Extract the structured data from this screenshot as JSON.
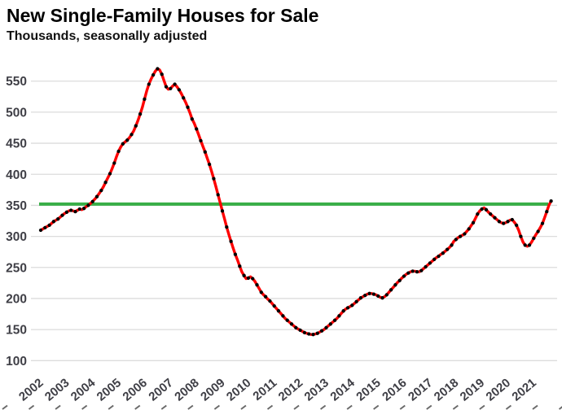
{
  "chart_data": {
    "type": "line",
    "title": "New Single-Family Houses for Sale",
    "subtitle": "Thousands, seasonally adjusted",
    "unit": "thousands of houses",
    "frequency": "monthly",
    "x_start": "2002-01",
    "x_tick_years": [
      2002,
      2003,
      2004,
      2005,
      2006,
      2007,
      2008,
      2009,
      2010,
      2011,
      2012,
      2013,
      2014,
      2015,
      2016,
      2017,
      2018,
      2019,
      2020,
      2021
    ],
    "y_ticks": [
      100,
      150,
      200,
      250,
      300,
      350,
      400,
      450,
      500,
      550
    ],
    "ylim": [
      100,
      580
    ],
    "grid": true,
    "legend_position": "none",
    "reference_line": {
      "value": 352,
      "color": "#38AE47"
    },
    "colors": {
      "line": "#FE0000",
      "marker": "#000000",
      "gridline": "#DCDCDC",
      "axis_label": "#3F3F46",
      "title": "#000000",
      "bottom_tick": "#6A6A6A"
    },
    "series": [
      {
        "name": "New single-family houses for sale, seasonally adjusted",
        "line_color": "#FE0000",
        "marker_color": "#000000",
        "values": [
          310,
          312,
          314,
          316,
          318,
          321,
          324,
          326,
          328,
          331,
          334,
          337,
          339,
          341,
          342,
          341,
          340,
          342,
          344,
          343,
          345,
          348,
          350,
          353,
          356,
          360,
          364,
          369,
          374,
          380,
          387,
          394,
          401,
          409,
          418,
          428,
          437,
          444,
          449,
          452,
          455,
          459,
          464,
          470,
          478,
          487,
          497,
          508,
          521,
          534,
          545,
          553,
          560,
          566,
          570,
          568,
          561,
          551,
          541,
          537,
          538,
          542,
          545,
          541,
          536,
          530,
          523,
          516,
          508,
          499,
          489,
          482,
          473,
          464,
          454,
          445,
          436,
          426,
          416,
          405,
          393,
          380,
          367,
          354,
          341,
          328,
          315,
          303,
          292,
          281,
          271,
          262,
          252,
          243,
          237,
          232,
          233,
          235,
          232,
          228,
          222,
          216,
          210,
          206,
          203,
          199,
          196,
          192,
          188,
          184,
          180,
          176,
          172,
          168,
          165,
          162,
          159,
          156,
          153,
          151,
          149,
          147,
          145,
          144,
          143,
          142,
          142,
          143,
          144,
          146,
          148,
          150,
          153,
          156,
          159,
          162,
          165,
          168,
          172,
          176,
          180,
          183,
          185,
          187,
          189,
          192,
          195,
          198,
          201,
          203,
          205,
          207,
          208,
          208,
          207,
          206,
          204,
          202,
          201,
          203,
          206,
          210,
          214,
          218,
          222,
          226,
          229,
          233,
          236,
          239,
          241,
          243,
          244,
          244,
          243,
          243,
          245,
          248,
          251,
          254,
          257,
          260,
          263,
          266,
          268,
          271,
          273,
          276,
          279,
          282,
          286,
          292,
          295,
          298,
          300,
          302,
          304,
          308,
          312,
          317,
          322,
          329,
          336,
          341,
          344,
          346,
          343,
          339,
          336,
          333,
          330,
          327,
          324,
          322,
          321,
          322,
          324,
          326,
          327,
          323,
          318,
          310,
          300,
          291,
          286,
          284,
          286,
          291,
          297,
          303,
          308,
          314,
          321,
          330,
          340,
          350,
          357
        ]
      }
    ]
  }
}
